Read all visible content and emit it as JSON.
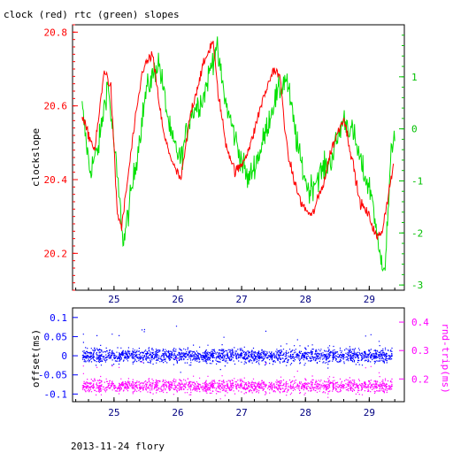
{
  "title": "clock (red) rtc (green) slopes",
  "footer": "2013-11-24 flory",
  "colors": {
    "clock": "#ff0000",
    "rtc": "#00e000",
    "offset": "#0000ff",
    "rtt": "#ff00ff",
    "axis": "#000000"
  },
  "chart_data": [
    {
      "type": "line",
      "title": "clock (red) rtc (green) slopes",
      "xlabel": "",
      "ylabel": "clockslope",
      "xlim": [
        24.35,
        29.55
      ],
      "ylim": [
        20.1,
        20.82
      ],
      "y2lim": [
        -3.1,
        2.0
      ],
      "x_ticks": [
        "25",
        "26",
        "27",
        "28",
        "29"
      ],
      "y_ticks": [
        "20.2",
        "20.4",
        "20.6",
        "20.8"
      ],
      "y2_ticks": [
        "1",
        "0",
        "-1",
        "-2",
        "-3"
      ],
      "series": [
        {
          "name": "clock (red)",
          "axis": "left",
          "color": "#ff0000",
          "x": [
            24.5,
            24.58,
            24.7,
            24.85,
            24.95,
            25.05,
            25.12,
            25.3,
            25.45,
            25.6,
            25.78,
            25.95,
            26.05,
            26.2,
            26.38,
            26.55,
            26.62,
            26.75,
            26.9,
            27.0,
            27.15,
            27.3,
            27.5,
            27.6,
            27.72,
            27.85,
            27.95,
            28.1,
            28.3,
            28.4,
            28.6,
            28.75,
            28.85,
            29.0,
            29.12,
            29.2,
            29.3,
            29.38
          ],
          "values": [
            20.57,
            20.53,
            20.48,
            20.7,
            20.65,
            20.31,
            20.27,
            20.52,
            20.7,
            20.74,
            20.52,
            20.43,
            20.4,
            20.58,
            20.7,
            20.78,
            20.65,
            20.5,
            20.42,
            20.44,
            20.5,
            20.6,
            20.7,
            20.68,
            20.47,
            20.38,
            20.33,
            20.3,
            20.4,
            20.48,
            20.57,
            20.44,
            20.34,
            20.3,
            20.24,
            20.26,
            20.36,
            20.44
          ]
        },
        {
          "name": "rtc (green)",
          "axis": "right",
          "color": "#00e000",
          "x": [
            24.5,
            24.62,
            24.75,
            24.9,
            25.0,
            25.15,
            25.35,
            25.5,
            25.7,
            25.9,
            26.05,
            26.2,
            26.4,
            26.6,
            26.75,
            26.95,
            27.1,
            27.3,
            27.5,
            27.7,
            27.9,
            28.05,
            28.2,
            28.4,
            28.6,
            28.75,
            28.9,
            29.05,
            29.15,
            29.25,
            29.35,
            29.4
          ],
          "values": [
            0.4,
            -0.8,
            -0.4,
            0.9,
            -0.3,
            -2.2,
            -0.6,
            0.7,
            1.3,
            -0.2,
            -0.6,
            0.3,
            0.6,
            1.6,
            0.5,
            -0.4,
            -1.0,
            -0.4,
            0.5,
            1.0,
            -0.5,
            -1.2,
            -0.9,
            -0.6,
            0.2,
            -0.1,
            -0.8,
            -1.3,
            -2.4,
            -2.6,
            -0.4,
            0.0
          ]
        }
      ]
    },
    {
      "type": "scatter",
      "xlabel": "",
      "ylabel": "offset(ms)",
      "y2label": "rnd-trip(ms)",
      "xlim": [
        24.35,
        29.55
      ],
      "ylim": [
        -0.12,
        0.125
      ],
      "y2lim": [
        0.12,
        0.45
      ],
      "x_ticks": [
        "25",
        "26",
        "27",
        "28",
        "29"
      ],
      "y_ticks": [
        "0.1",
        "0.05",
        "0",
        "-0.05",
        "-0.1"
      ],
      "y2_ticks": [
        "0.4",
        "0.3",
        "0.2"
      ],
      "series": [
        {
          "name": "offset",
          "axis": "left",
          "color": "#0000ff",
          "x_range": [
            24.5,
            29.35
          ],
          "center": 0.0,
          "spread": 0.02
        },
        {
          "name": "round-trip",
          "axis": "right",
          "color": "#ff00ff",
          "x_range": [
            24.5,
            29.35
          ],
          "center": 0.175,
          "spread": 0.025
        }
      ]
    }
  ]
}
